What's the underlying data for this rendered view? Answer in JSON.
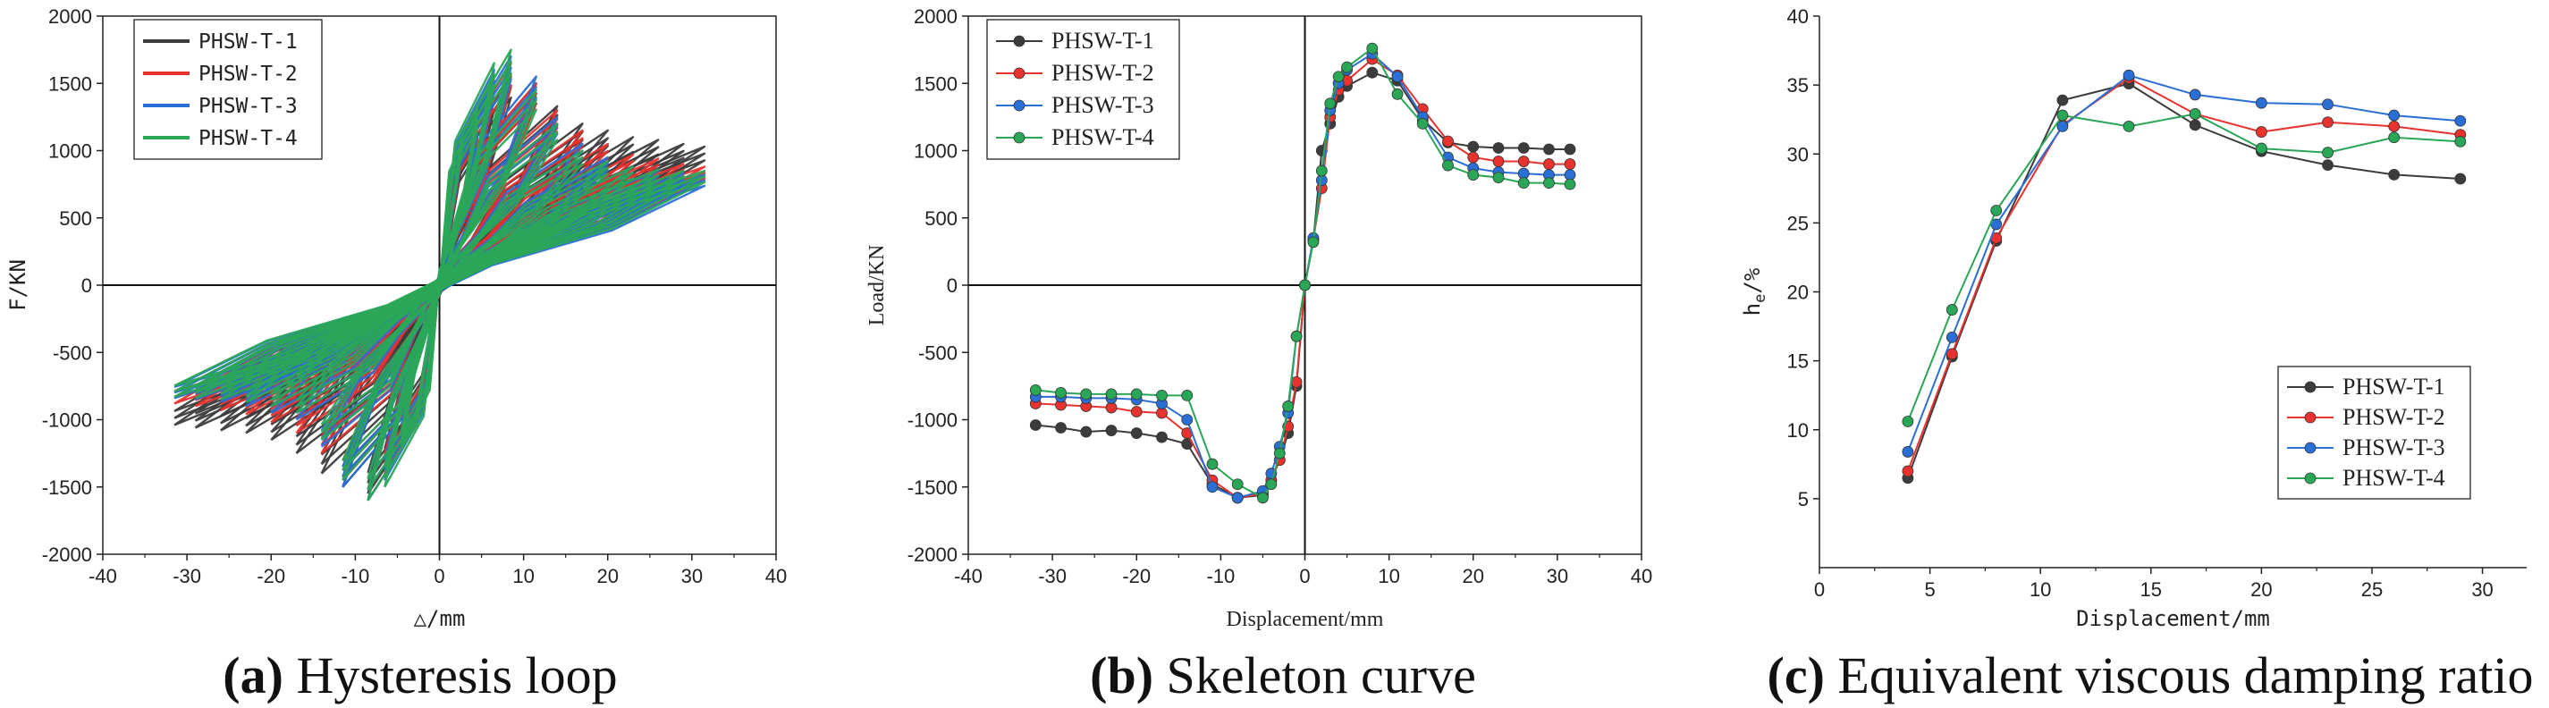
{
  "captions": {
    "a_letter": "(a)",
    "a_text": " Hysteresis loop",
    "b_letter": "(b)",
    "b_text": " Skeleton curve",
    "c_letter": "(c)",
    "c_text": " Equivalent viscous damping ratio"
  },
  "colors": {
    "T1": "#3c3c3c",
    "T2": "#e8322e",
    "T3": "#2a6fd6",
    "T4": "#2aa657"
  },
  "chart_data": [
    {
      "id": "a",
      "type": "line",
      "title": "Hysteresis loop",
      "xlabel": "△/mm",
      "ylabel": "F/KN",
      "xlim": [
        -40,
        40
      ],
      "ylim": [
        -2000,
        2000
      ],
      "xticks": [
        "-40",
        "-30",
        "-20",
        "-10",
        "0",
        "10",
        "20",
        "30",
        "40"
      ],
      "yticks": [
        "-2000",
        "-1500",
        "-1000",
        "-500",
        "0",
        "500",
        "1000",
        "1500",
        "2000"
      ],
      "legend": "top-left",
      "series": [
        {
          "name": "PHSW-T-1",
          "cycles": [
            {
              "d": 4.5,
              "fp": 1100,
              "fn": -1000
            },
            {
              "d": 6.5,
              "fp": 1450,
              "fn": -1350
            },
            {
              "d": 8.5,
              "fp": 1550,
              "fn": -1550
            },
            {
              "d": 11.5,
              "fp": 1500,
              "fn": -1500
            },
            {
              "d": 14,
              "fp": 1330,
              "fn": -1400
            },
            {
              "d": 17,
              "fp": 1200,
              "fn": -1250
            },
            {
              "d": 20,
              "fp": 1150,
              "fn": -1150
            },
            {
              "d": 23,
              "fp": 1100,
              "fn": -1100
            },
            {
              "d": 26,
              "fp": 1080,
              "fn": -1080
            },
            {
              "d": 29,
              "fp": 1050,
              "fn": -1060
            },
            {
              "d": 31.5,
              "fp": 1030,
              "fn": -1040
            }
          ]
        },
        {
          "name": "PHSW-T-2",
          "cycles": [
            {
              "d": 4.5,
              "fp": 1200,
              "fn": -1100
            },
            {
              "d": 6.5,
              "fp": 1550,
              "fn": -1400
            },
            {
              "d": 8.5,
              "fp": 1650,
              "fn": -1600
            },
            {
              "d": 11.5,
              "fp": 1500,
              "fn": -1450
            },
            {
              "d": 14,
              "fp": 1300,
              "fn": -1250
            },
            {
              "d": 17,
              "fp": 1150,
              "fn": -1100
            },
            {
              "d": 20,
              "fp": 1050,
              "fn": -1020
            },
            {
              "d": 23,
              "fp": 970,
              "fn": -960
            },
            {
              "d": 26,
              "fp": 940,
              "fn": -930
            },
            {
              "d": 29,
              "fp": 900,
              "fn": -900
            },
            {
              "d": 31.5,
              "fp": 880,
              "fn": -880
            }
          ]
        },
        {
          "name": "PHSW-T-3",
          "cycles": [
            {
              "d": 4.5,
              "fp": 1250,
              "fn": -1150
            },
            {
              "d": 6.5,
              "fp": 1600,
              "fn": -1450
            },
            {
              "d": 8.5,
              "fp": 1700,
              "fn": -1600
            },
            {
              "d": 11.5,
              "fp": 1550,
              "fn": -1500
            },
            {
              "d": 14,
              "fp": 1250,
              "fn": -1200
            },
            {
              "d": 17,
              "fp": 1050,
              "fn": -1000
            },
            {
              "d": 20,
              "fp": 950,
              "fn": -950
            },
            {
              "d": 23,
              "fp": 880,
              "fn": -900
            },
            {
              "d": 26,
              "fp": 850,
              "fn": -870
            },
            {
              "d": 29,
              "fp": 830,
              "fn": -850
            },
            {
              "d": 31.5,
              "fp": 820,
              "fn": -840
            }
          ]
        },
        {
          "name": "PHSW-T-4",
          "cycles": [
            {
              "d": 4.5,
              "fp": 1300,
              "fn": -1200
            },
            {
              "d": 6.5,
              "fp": 1650,
              "fn": -1500
            },
            {
              "d": 8.5,
              "fp": 1750,
              "fn": -1600
            },
            {
              "d": 11.5,
              "fp": 1450,
              "fn": -1450
            },
            {
              "d": 14,
              "fp": 1200,
              "fn": -1150
            },
            {
              "d": 17,
              "fp": 1000,
              "fn": -950
            },
            {
              "d": 20,
              "fp": 920,
              "fn": -900
            },
            {
              "d": 23,
              "fp": 880,
              "fn": -870
            },
            {
              "d": 26,
              "fp": 860,
              "fn": -850
            },
            {
              "d": 29,
              "fp": 850,
              "fn": -840
            },
            {
              "d": 31.5,
              "fp": 850,
              "fn": -830
            }
          ]
        }
      ]
    },
    {
      "id": "b",
      "type": "line",
      "title": "Skeleton curve",
      "xlabel": "Displacement/mm",
      "ylabel": "Load/KN",
      "xlim": [
        -40,
        40
      ],
      "ylim": [
        -2000,
        2000
      ],
      "xticks": [
        "-40",
        "-30",
        "-20",
        "-10",
        "0",
        "10",
        "20",
        "30",
        "40"
      ],
      "yticks": [
        "-2000",
        "-1500",
        "-1000",
        "-500",
        "0",
        "500",
        "1000",
        "1500",
        "2000"
      ],
      "legend": "top-left",
      "series": [
        {
          "name": "PHSW-T-1",
          "x": [
            -32,
            -29,
            -26,
            -23,
            -20,
            -17,
            -14,
            -11,
            -8,
            -5,
            -4,
            -3,
            -2,
            -1,
            0,
            1,
            2,
            3,
            4,
            5,
            8,
            11,
            14,
            17,
            20,
            23,
            26,
            29,
            31.5
          ],
          "y": [
            -1040,
            -1060,
            -1090,
            -1080,
            -1100,
            -1130,
            -1180,
            -1480,
            -1580,
            -1560,
            -1450,
            -1300,
            -1100,
            -750,
            0,
            330,
            1000,
            1200,
            1400,
            1480,
            1580,
            1520,
            1230,
            1060,
            1030,
            1020,
            1020,
            1010,
            1010
          ]
        },
        {
          "name": "PHSW-T-2",
          "x": [
            -32,
            -29,
            -26,
            -23,
            -20,
            -17,
            -14,
            -11,
            -8,
            -5,
            -4,
            -3,
            -2,
            -1,
            0,
            1,
            2,
            3,
            4,
            5,
            8,
            11,
            14,
            17,
            20,
            23,
            26,
            29,
            31.5
          ],
          "y": [
            -880,
            -890,
            -900,
            -910,
            -940,
            -950,
            -1100,
            -1450,
            -1580,
            -1550,
            -1450,
            -1300,
            -1050,
            -720,
            0,
            340,
            720,
            1250,
            1450,
            1520,
            1680,
            1560,
            1310,
            1070,
            950,
            920,
            920,
            900,
            900
          ]
        },
        {
          "name": "PHSW-T-3",
          "x": [
            -32,
            -29,
            -26,
            -23,
            -20,
            -17,
            -14,
            -11,
            -8,
            -5,
            -4,
            -3,
            -2,
            -1,
            0,
            1,
            2,
            3,
            4,
            5,
            8,
            11,
            14,
            17,
            20,
            23,
            26,
            29,
            31.5
          ],
          "y": [
            -830,
            -830,
            -840,
            -840,
            -850,
            -880,
            -1000,
            -1500,
            -1580,
            -1530,
            -1400,
            -1200,
            -950,
            -380,
            0,
            350,
            780,
            1300,
            1500,
            1600,
            1720,
            1550,
            1250,
            950,
            870,
            840,
            830,
            820,
            820
          ]
        },
        {
          "name": "PHSW-T-4",
          "x": [
            -32,
            -29,
            -26,
            -23,
            -20,
            -17,
            -14,
            -11,
            -8,
            -5,
            -4,
            -3,
            -2,
            -1,
            0,
            1,
            2,
            3,
            4,
            5,
            8,
            11,
            14,
            17,
            20,
            23,
            26,
            29,
            31.5
          ],
          "y": [
            -780,
            -800,
            -810,
            -810,
            -810,
            -820,
            -820,
            -1330,
            -1480,
            -1580,
            -1480,
            -1250,
            -900,
            -380,
            0,
            320,
            850,
            1350,
            1550,
            1620,
            1760,
            1420,
            1200,
            890,
            820,
            800,
            760,
            760,
            750
          ]
        }
      ]
    },
    {
      "id": "c",
      "type": "line",
      "title": "Equivalent viscous damping ratio",
      "xlabel": "Displacement/mm",
      "ylabel_main": "h",
      "ylabel_sub": "e",
      "ylabel_unit": "/%",
      "xlim": [
        0,
        32
      ],
      "ylim": [
        0,
        40
      ],
      "xticks": [
        "0",
        "5",
        "10",
        "15",
        "20",
        "25",
        "30"
      ],
      "yticks": [
        "5",
        "10",
        "15",
        "20",
        "25",
        "30",
        "35",
        "40"
      ],
      "legend": "bottom-right",
      "series": [
        {
          "name": "PHSW-T-1",
          "x": [
            4,
            6,
            8,
            11,
            14,
            17,
            20,
            23,
            26,
            29
          ],
          "y": [
            6.5,
            15.3,
            23.7,
            33.9,
            35.1,
            32.1,
            30.2,
            29.2,
            28.5,
            28.2
          ]
        },
        {
          "name": "PHSW-T-2",
          "x": [
            4,
            6,
            8,
            11,
            14,
            17,
            20,
            23,
            26,
            29
          ],
          "y": [
            7.0,
            15.5,
            23.9,
            32.1,
            35.5,
            32.9,
            31.6,
            32.3,
            32.0,
            31.4
          ]
        },
        {
          "name": "PHSW-T-3",
          "x": [
            4,
            6,
            8,
            11,
            14,
            17,
            20,
            23,
            26,
            29
          ],
          "y": [
            8.4,
            16.7,
            24.9,
            32.0,
            35.7,
            34.3,
            33.7,
            33.6,
            32.8,
            32.4
          ]
        },
        {
          "name": "PHSW-T-4",
          "x": [
            4,
            6,
            8,
            11,
            14,
            17,
            20,
            23,
            26,
            29
          ],
          "y": [
            10.6,
            18.7,
            25.9,
            32.8,
            32.0,
            32.9,
            30.4,
            30.1,
            31.2,
            30.9
          ]
        }
      ]
    }
  ]
}
